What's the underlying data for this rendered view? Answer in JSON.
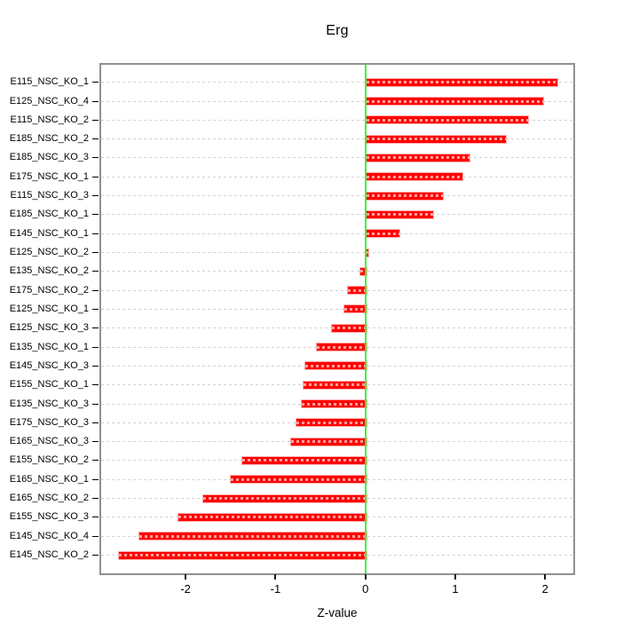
{
  "title": "Erg",
  "chart_data": {
    "type": "bar",
    "orientation": "horizontal",
    "title": "Erg",
    "xlabel": "Z-value",
    "ylabel": "",
    "categories": [
      "E115_NSC_KO_1",
      "E125_NSC_KO_4",
      "E115_NSC_KO_2",
      "E185_NSC_KO_2",
      "E185_NSC_KO_3",
      "E175_NSC_KO_1",
      "E115_NSC_KO_3",
      "E185_NSC_KO_1",
      "E145_NSC_KO_1",
      "E125_NSC_KO_2",
      "E135_NSC_KO_2",
      "E175_NSC_KO_2",
      "E125_NSC_KO_1",
      "E125_NSC_KO_3",
      "E135_NSC_KO_1",
      "E145_NSC_KO_3",
      "E155_NSC_KO_1",
      "E135_NSC_KO_3",
      "E175_NSC_KO_3",
      "E165_NSC_KO_3",
      "E155_NSC_KO_2",
      "E165_NSC_KO_1",
      "E165_NSC_KO_2",
      "E155_NSC_KO_3",
      "E145_NSC_KO_4",
      "E145_NSC_KO_2"
    ],
    "values": [
      2.13,
      1.97,
      1.8,
      1.55,
      1.15,
      1.07,
      0.85,
      0.74,
      0.37,
      0.02,
      -0.07,
      -0.2,
      -0.24,
      -0.38,
      -0.55,
      -0.68,
      -0.7,
      -0.72,
      -0.78,
      -0.84,
      -1.38,
      -1.51,
      -1.81,
      -2.09,
      -2.52,
      -2.75
    ],
    "x_ticks": [
      -2,
      -1,
      0,
      1,
      2
    ],
    "x_tick_labels": [
      "-2",
      "-1",
      "0",
      "1",
      "2"
    ],
    "xlim": [
      -2.95,
      2.35
    ],
    "zero_reference_line": 0,
    "grid": "horizontal dashed line per category",
    "legend": "none",
    "colors": {
      "bar": "#ff0000",
      "bar_edge": "#ffabab",
      "zero_line": "#3cf53c",
      "gridline": "#d2d2d2",
      "plot_border": "#909090",
      "text": "#000000",
      "background": "#ffffff"
    }
  }
}
